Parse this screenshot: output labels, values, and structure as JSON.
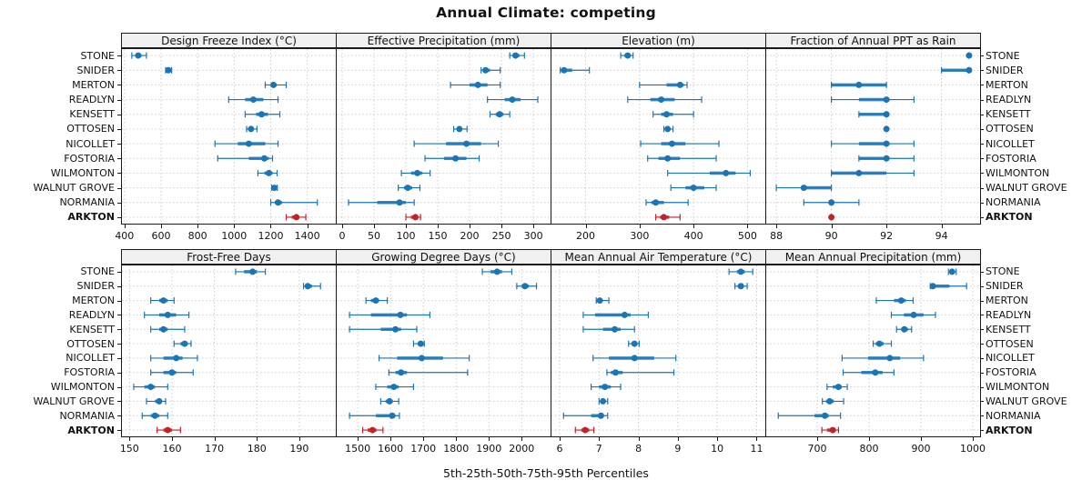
{
  "title": "Annual Climate: competing",
  "caption": "5th-25th-50th-75th-95th Percentiles",
  "colors": {
    "series_blue": "#1b74b4",
    "highlight_red": "#bf2228",
    "strip_bg": "#f0f0f0",
    "grid": "#cccccc",
    "border": "#1a1a1a",
    "text": "#111111"
  },
  "stations": [
    "STONE",
    "SNIDER",
    "MERTON",
    "READLYN",
    "KENSETT",
    "OTTOSEN",
    "NICOLLET",
    "FOSTORIA",
    "WILMONTON",
    "WALNUT GROVE",
    "NORMANIA",
    "ARKTON"
  ],
  "highlight_station": "ARKTON",
  "chart_data": {
    "type": "dotplot-percentiles",
    "percentile_labels": [
      "5th",
      "25th",
      "50th",
      "75th",
      "95th"
    ],
    "layout": "2 rows x 4 columns trellis, station labels on both sides, ARKTON highlighted red",
    "panels": [
      {
        "id": "design-freeze-index",
        "title": "Design Freeze Index (°C)",
        "grid_row": 0,
        "grid_col": 0,
        "xlim": [
          381,
          1556
        ],
        "ticks": [
          400,
          600,
          800,
          1000,
          1200,
          1400
        ],
        "values": [
          [
            440,
            462,
            475,
            492,
            520
          ],
          [
            625,
            633,
            640,
            646,
            658
          ],
          [
            1170,
            1200,
            1215,
            1232,
            1285
          ],
          [
            970,
            1060,
            1105,
            1160,
            1240
          ],
          [
            1060,
            1120,
            1150,
            1185,
            1250
          ],
          [
            1068,
            1082,
            1092,
            1102,
            1125
          ],
          [
            895,
            1020,
            1080,
            1170,
            1240
          ],
          [
            910,
            1080,
            1165,
            1190,
            1210
          ],
          [
            1130,
            1165,
            1190,
            1210,
            1235
          ],
          [
            1205,
            1214,
            1220,
            1226,
            1236
          ],
          [
            1200,
            1222,
            1240,
            1262,
            1455
          ],
          [
            1285,
            1315,
            1340,
            1357,
            1392
          ]
        ]
      },
      {
        "id": "effective-precipitation",
        "title": "Effective Precipitation (mm)",
        "grid_row": 0,
        "grid_col": 1,
        "xlim": [
          -10,
          327
        ],
        "ticks": [
          0,
          50,
          100,
          150,
          200,
          250,
          300
        ],
        "values": [
          [
            263,
            268,
            272,
            278,
            286
          ],
          [
            218,
            221,
            225,
            232,
            248
          ],
          [
            170,
            200,
            213,
            228,
            248
          ],
          [
            228,
            255,
            267,
            280,
            307
          ],
          [
            232,
            241,
            247,
            253,
            263
          ],
          [
            175,
            180,
            184,
            188,
            196
          ],
          [
            113,
            163,
            195,
            218,
            245
          ],
          [
            130,
            160,
            178,
            195,
            215
          ],
          [
            93,
            108,
            118,
            126,
            138
          ],
          [
            88,
            97,
            103,
            110,
            122
          ],
          [
            10,
            55,
            90,
            100,
            113
          ],
          [
            100,
            108,
            115,
            119,
            123
          ]
        ]
      },
      {
        "id": "elevation",
        "title": "Elevation (m)",
        "grid_row": 0,
        "grid_col": 2,
        "xlim": [
          135,
          533
        ],
        "ticks": [
          200,
          300,
          400,
          500
        ],
        "values": [
          [
            265,
            272,
            278,
            283,
            288
          ],
          [
            153,
            156,
            160,
            175,
            207
          ],
          [
            300,
            350,
            375,
            382,
            388
          ],
          [
            278,
            320,
            340,
            365,
            415
          ],
          [
            325,
            340,
            350,
            362,
            400
          ],
          [
            345,
            349,
            352,
            356,
            362
          ],
          [
            302,
            340,
            360,
            385,
            447
          ],
          [
            315,
            335,
            352,
            375,
            442
          ],
          [
            352,
            430,
            460,
            478,
            505
          ],
          [
            358,
            385,
            400,
            420,
            442
          ],
          [
            312,
            322,
            330,
            345,
            390
          ],
          [
            330,
            338,
            345,
            355,
            375
          ]
        ]
      },
      {
        "id": "fraction-annual-ppt-rain",
        "title": "Fraction of Annual PPT as Rain",
        "grid_row": 0,
        "grid_col": 3,
        "xlim": [
          87.6,
          95.4
        ],
        "ticks": [
          88,
          90,
          92,
          94
        ],
        "values": [
          [
            95,
            95,
            95,
            95,
            95
          ],
          [
            94,
            94,
            95,
            95,
            95
          ],
          [
            90,
            90,
            91,
            92,
            92
          ],
          [
            90,
            91,
            92,
            92,
            93
          ],
          [
            91,
            91,
            92,
            92,
            92
          ],
          [
            92,
            92,
            92,
            92,
            92
          ],
          [
            90,
            91,
            92,
            92,
            93
          ],
          [
            91,
            91,
            92,
            92,
            93
          ],
          [
            90,
            90,
            91,
            92,
            93
          ],
          [
            88,
            89,
            89,
            90,
            90
          ],
          [
            89,
            90,
            90,
            90,
            91
          ],
          [
            90,
            90,
            90,
            90,
            90
          ]
        ]
      },
      {
        "id": "frost-free-days",
        "title": "Frost-Free Days",
        "grid_row": 1,
        "grid_col": 0,
        "xlim": [
          148,
          198.6
        ],
        "ticks": [
          150,
          160,
          170,
          180,
          190
        ],
        "values": [
          [
            175,
            177,
            179,
            180,
            182
          ],
          [
            191,
            191.5,
            192,
            193,
            195
          ],
          [
            155,
            157,
            158,
            159,
            160.5
          ],
          [
            153.5,
            157,
            159,
            161,
            164
          ],
          [
            155,
            157,
            158,
            159,
            163
          ],
          [
            160.5,
            162,
            163,
            163.5,
            164.5
          ],
          [
            155,
            158,
            161,
            162.5,
            166
          ],
          [
            155,
            158,
            160,
            161,
            165
          ],
          [
            151,
            153.5,
            155,
            156,
            159
          ],
          [
            154,
            156,
            157,
            157.5,
            158.5
          ],
          [
            153,
            155,
            156,
            157,
            159
          ],
          [
            156.5,
            158,
            159,
            160,
            162
          ]
        ]
      },
      {
        "id": "growing-degree-days",
        "title": "Growing Degree Days (°C)",
        "grid_row": 1,
        "grid_col": 1,
        "xlim": [
          1433,
          2088
        ],
        "ticks": [
          1500,
          1600,
          1700,
          1800,
          1900,
          2000
        ],
        "values": [
          [
            1880,
            1905,
            1925,
            1940,
            1970
          ],
          [
            1985,
            2000,
            2010,
            2022,
            2045
          ],
          [
            1525,
            1540,
            1555,
            1565,
            1590
          ],
          [
            1475,
            1540,
            1630,
            1650,
            1720
          ],
          [
            1475,
            1570,
            1615,
            1632,
            1680
          ],
          [
            1670,
            1684,
            1692,
            1697,
            1703
          ],
          [
            1565,
            1620,
            1695,
            1760,
            1840
          ],
          [
            1595,
            1615,
            1632,
            1650,
            1835
          ],
          [
            1555,
            1590,
            1610,
            1625,
            1670
          ],
          [
            1570,
            1585,
            1597,
            1607,
            1625
          ],
          [
            1475,
            1555,
            1605,
            1615,
            1627
          ],
          [
            1515,
            1530,
            1545,
            1557,
            1577
          ]
        ]
      },
      {
        "id": "mean-annual-air-temperature",
        "title": "Mean Annual Air Temperature (°C)",
        "grid_row": 1,
        "grid_col": 2,
        "xlim": [
          5.77,
          11.22
        ],
        "ticks": [
          6,
          7,
          8,
          9,
          10,
          11
        ],
        "values": [
          [
            10.3,
            10.5,
            10.6,
            10.7,
            10.9
          ],
          [
            10.45,
            10.52,
            10.6,
            10.66,
            10.76
          ],
          [
            6.93,
            6.98,
            7.02,
            7.07,
            7.25
          ],
          [
            6.6,
            6.9,
            7.65,
            7.8,
            8.25
          ],
          [
            6.6,
            7.1,
            7.4,
            7.55,
            7.9
          ],
          [
            7.75,
            7.85,
            7.9,
            7.95,
            8.02
          ],
          [
            6.85,
            7.25,
            7.9,
            8.4,
            8.95
          ],
          [
            7.2,
            7.3,
            7.42,
            7.6,
            8.9
          ],
          [
            6.8,
            7.0,
            7.15,
            7.3,
            7.55
          ],
          [
            7.0,
            7.05,
            7.1,
            7.15,
            7.22
          ],
          [
            6.1,
            6.8,
            7.05,
            7.12,
            7.22
          ],
          [
            6.4,
            6.55,
            6.65,
            6.75,
            6.87
          ]
        ]
      },
      {
        "id": "mean-annual-precipitation",
        "title": "Mean Annual Precipitation (mm)",
        "grid_row": 1,
        "grid_col": 3,
        "xlim": [
          600,
          1014
        ],
        "ticks": [
          700,
          800,
          900,
          1000
        ],
        "values": [
          [
            953,
            957,
            960,
            963,
            968
          ],
          [
            918,
            920,
            923,
            955,
            988
          ],
          [
            814,
            848,
            862,
            871,
            885
          ],
          [
            843,
            867,
            886,
            905,
            928
          ],
          [
            853,
            862,
            868,
            875,
            882
          ],
          [
            808,
            813,
            820,
            828,
            843
          ],
          [
            748,
            798,
            840,
            860,
            905
          ],
          [
            750,
            785,
            812,
            826,
            848
          ],
          [
            719,
            730,
            741,
            747,
            758
          ],
          [
            710,
            717,
            724,
            732,
            751
          ],
          [
            625,
            695,
            715,
            722,
            745
          ],
          [
            709,
            719,
            730,
            736,
            741
          ]
        ]
      }
    ]
  }
}
